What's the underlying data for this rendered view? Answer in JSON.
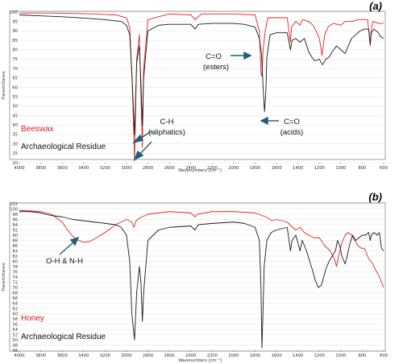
{
  "colors": {
    "sample": "#e02424",
    "residue": "#1a1a1a",
    "arrow": "#1f5f7a",
    "grid": "#cfcfcf"
  },
  "chart_data": [
    {
      "type": "line",
      "panel_label": "(a)",
      "xlabel": "Wavenumbers [cm⁻¹]",
      "ylabel": "Transmittance",
      "xlim": [
        4000,
        600
      ],
      "ylim": [
        20,
        100
      ],
      "x_ticks": [
        "4000",
        "3800",
        "3600",
        "3400",
        "3200",
        "3000",
        "2800",
        "2600",
        "2400",
        "2200",
        "2000",
        "1800",
        "1600",
        "1400",
        "1200",
        "1000",
        "800",
        "600"
      ],
      "y_ticks": [
        "20",
        "25",
        "30",
        "35",
        "40",
        "45",
        "50",
        "55",
        "60",
        "65",
        "70",
        "75",
        "80",
        "85",
        "90",
        "95",
        "100"
      ],
      "legend": [
        "Beeswax",
        "Archaeological Residue"
      ],
      "annotations": [
        {
          "text": "C-H",
          "text2": "(aliphatics)"
        },
        {
          "text": "C=O",
          "text2": "(esters)"
        },
        {
          "text": "C=O",
          "text2": "(acids)"
        }
      ],
      "series": [
        {
          "name": "Beeswax",
          "color": "#e02424",
          "points": [
            [
              4000,
              99.5
            ],
            [
              3700,
              99.5
            ],
            [
              3500,
              99.3
            ],
            [
              3300,
              99
            ],
            [
              3100,
              98.5
            ],
            [
              3000,
              97
            ],
            [
              2970,
              92
            ],
            [
              2945,
              60
            ],
            [
              2925,
              21
            ],
            [
              2905,
              75
            ],
            [
              2880,
              88
            ],
            [
              2865,
              55
            ],
            [
              2852,
              28
            ],
            [
              2840,
              70
            ],
            [
              2800,
              96
            ],
            [
              2600,
              99
            ],
            [
              2400,
              98.5
            ],
            [
              2360,
              96
            ],
            [
              2340,
              97
            ],
            [
              2300,
              99
            ],
            [
              2000,
              99
            ],
            [
              1800,
              98.5
            ],
            [
              1760,
              90
            ],
            [
              1745,
              68
            ],
            [
              1736,
              66
            ],
            [
              1725,
              80
            ],
            [
              1705,
              90
            ],
            [
              1680,
              97
            ],
            [
              1500,
              97
            ],
            [
              1470,
              84
            ],
            [
              1460,
              92
            ],
            [
              1420,
              95
            ],
            [
              1380,
              93
            ],
            [
              1360,
              96
            ],
            [
              1300,
              95
            ],
            [
              1260,
              93
            ],
            [
              1240,
              91
            ],
            [
              1200,
              86
            ],
            [
              1175,
              77
            ],
            [
              1150,
              88
            ],
            [
              1120,
              92
            ],
            [
              1070,
              94
            ],
            [
              1000,
              93
            ],
            [
              960,
              95
            ],
            [
              900,
              95
            ],
            [
              830,
              96
            ],
            [
              750,
              96
            ],
            [
              725,
              82
            ],
            [
              718,
              90
            ],
            [
              700,
              95
            ],
            [
              650,
              94
            ],
            [
              600,
              94
            ]
          ]
        },
        {
          "name": "Archaeological Residue",
          "color": "#1a1a1a",
          "points": [
            [
              4000,
              98.5
            ],
            [
              3800,
              98
            ],
            [
              3600,
              97.5
            ],
            [
              3400,
              96.8
            ],
            [
              3200,
              96
            ],
            [
              3050,
              95
            ],
            [
              3000,
              93
            ],
            [
              2970,
              88
            ],
            [
              2950,
              68
            ],
            [
              2925,
              35
            ],
            [
              2905,
              73
            ],
            [
              2880,
              82
            ],
            [
              2865,
              62
            ],
            [
              2852,
              40
            ],
            [
              2840,
              65
            ],
            [
              2800,
              90
            ],
            [
              2700,
              93
            ],
            [
              2600,
              93.5
            ],
            [
              2400,
              93.5
            ],
            [
              2360,
              91
            ],
            [
              2330,
              93.5
            ],
            [
              2200,
              94
            ],
            [
              2000,
              94
            ],
            [
              1900,
              93.5
            ],
            [
              1800,
              92
            ],
            [
              1760,
              86
            ],
            [
              1740,
              78
            ],
            [
              1725,
              60
            ],
            [
              1712,
              47
            ],
            [
              1700,
              57
            ],
            [
              1690,
              76
            ],
            [
              1660,
              88
            ],
            [
              1600,
              89
            ],
            [
              1500,
              89
            ],
            [
              1470,
              80
            ],
            [
              1455,
              85
            ],
            [
              1420,
              86
            ],
            [
              1380,
              84
            ],
            [
              1340,
              86
            ],
            [
              1300,
              79
            ],
            [
              1270,
              76
            ],
            [
              1240,
              74
            ],
            [
              1200,
              75
            ],
            [
              1170,
              72
            ],
            [
              1140,
              75
            ],
            [
              1110,
              76
            ],
            [
              1080,
              79
            ],
            [
              1040,
              82
            ],
            [
              1000,
              80
            ],
            [
              960,
              78
            ],
            [
              930,
              82
            ],
            [
              900,
              86
            ],
            [
              860,
              88
            ],
            [
              820,
              90
            ],
            [
              780,
              91
            ],
            [
              740,
              91
            ],
            [
              725,
              83
            ],
            [
              715,
              89
            ],
            [
              690,
              91
            ],
            [
              650,
              89
            ],
            [
              630,
              87
            ],
            [
              600,
              86
            ]
          ]
        }
      ]
    },
    {
      "type": "line",
      "panel_label": "(b)",
      "xlabel": "Wavenumbers [cm⁻¹]",
      "ylabel": "Transmittance",
      "xlim": [
        4000,
        600
      ],
      "ylim": [
        46,
        102
      ],
      "x_ticks": [
        "4000",
        "3800",
        "3600",
        "3400",
        "3200",
        "3000",
        "2800",
        "2600",
        "2400",
        "2200",
        "2000",
        "1800",
        "1600",
        "1400",
        "1200",
        "1000",
        "800",
        "600"
      ],
      "y_ticks": [
        "46",
        "48",
        "50",
        "52",
        "54",
        "56",
        "58",
        "60",
        "62",
        "64",
        "66",
        "68",
        "70",
        "72",
        "74",
        "76",
        "78",
        "80",
        "82",
        "84",
        "86",
        "88",
        "90",
        "92",
        "94",
        "96",
        "98",
        "100",
        "102"
      ],
      "legend": [
        "Honey",
        "Archaeological Residue"
      ],
      "annotations": [
        {
          "text": "O-H & N-H"
        }
      ],
      "series": [
        {
          "name": "Honey",
          "color": "#e02424",
          "points": [
            [
              4000,
              99.5
            ],
            [
              3800,
              99
            ],
            [
              3700,
              98
            ],
            [
              3600,
              95
            ],
            [
              3550,
              92
            ],
            [
              3500,
              89.5
            ],
            [
              3450,
              88
            ],
            [
              3400,
              87.3
            ],
            [
              3350,
              87.5
            ],
            [
              3300,
              88.5
            ],
            [
              3200,
              91
            ],
            [
              3100,
              94
            ],
            [
              3000,
              96
            ],
            [
              2950,
              95
            ],
            [
              2930,
              93
            ],
            [
              2910,
              95.5
            ],
            [
              2880,
              96.5
            ],
            [
              2800,
              98
            ],
            [
              2600,
              99
            ],
            [
              2400,
              98.5
            ],
            [
              2360,
              97
            ],
            [
              2340,
              98
            ],
            [
              2200,
              99
            ],
            [
              2000,
              99
            ],
            [
              1800,
              98.5
            ],
            [
              1700,
              97
            ],
            [
              1640,
              95.5
            ],
            [
              1600,
              96
            ],
            [
              1500,
              95
            ],
            [
              1450,
              93
            ],
            [
              1420,
              92
            ],
            [
              1380,
              93
            ],
            [
              1340,
              91
            ],
            [
              1300,
              90
            ],
            [
              1250,
              89
            ],
            [
              1200,
              89
            ],
            [
              1150,
              86
            ],
            [
              1100,
              84
            ],
            [
              1060,
              81
            ],
            [
              1040,
              78
            ],
            [
              1020,
              82
            ],
            [
              990,
              87
            ],
            [
              960,
              90
            ],
            [
              930,
              91
            ],
            [
              900,
              90
            ],
            [
              870,
              88
            ],
            [
              840,
              86
            ],
            [
              810,
              85
            ],
            [
              780,
              85
            ],
            [
              760,
              83
            ],
            [
              740,
              81
            ],
            [
              720,
              80
            ],
            [
              700,
              79
            ],
            [
              680,
              77
            ],
            [
              650,
              75
            ],
            [
              620,
              72
            ],
            [
              600,
              70
            ]
          ]
        },
        {
          "name": "Archaeological Residue",
          "color": "#1a1a1a",
          "points": [
            [
              4000,
              99
            ],
            [
              3900,
              99
            ],
            [
              3800,
              98.5
            ],
            [
              3700,
              97.5
            ],
            [
              3600,
              97
            ],
            [
              3500,
              96
            ],
            [
              3400,
              95.5
            ],
            [
              3300,
              95
            ],
            [
              3200,
              94.5
            ],
            [
              3100,
              94
            ],
            [
              3050,
              93
            ],
            [
              3000,
              90
            ],
            [
              2970,
              80
            ],
            [
              2950,
              60
            ],
            [
              2925,
              50
            ],
            [
              2905,
              68
            ],
            [
              2880,
              78
            ],
            [
              2865,
              72
            ],
            [
              2852,
              57
            ],
            [
              2840,
              68
            ],
            [
              2800,
              88
            ],
            [
              2700,
              92
            ],
            [
              2600,
              93
            ],
            [
              2400,
              93.5
            ],
            [
              2360,
              92
            ],
            [
              2330,
              94
            ],
            [
              2200,
              94.5
            ],
            [
              2000,
              95
            ],
            [
              1900,
              94.5
            ],
            [
              1800,
              93
            ],
            [
              1760,
              88
            ],
            [
              1745,
              70
            ],
            [
              1736,
              47
            ],
            [
              1728,
              58
            ],
            [
              1715,
              78
            ],
            [
              1690,
              88
            ],
            [
              1650,
              91
            ],
            [
              1600,
              92
            ],
            [
              1500,
              93
            ],
            [
              1470,
              84
            ],
            [
              1455,
              88
            ],
            [
              1420,
              90
            ],
            [
              1380,
              84
            ],
            [
              1360,
              88
            ],
            [
              1320,
              84
            ],
            [
              1290,
              80
            ],
            [
              1260,
              76
            ],
            [
              1240,
              73
            ],
            [
              1210,
              70
            ],
            [
              1180,
              71
            ],
            [
              1160,
              74
            ],
            [
              1140,
              77
            ],
            [
              1110,
              80
            ],
            [
              1080,
              82
            ],
            [
              1050,
              84
            ],
            [
              1030,
              88
            ],
            [
              1010,
              86
            ],
            [
              990,
              82
            ],
            [
              960,
              79
            ],
            [
              940,
              82
            ],
            [
              920,
              86
            ],
            [
              890,
              90
            ],
            [
              860,
              88
            ],
            [
              830,
              89
            ],
            [
              800,
              90
            ],
            [
              770,
              90
            ],
            [
              740,
              91
            ],
            [
              725,
              88
            ],
            [
              715,
              90
            ],
            [
              690,
              91
            ],
            [
              660,
              90
            ],
            [
              640,
              91
            ],
            [
              620,
              85
            ],
            [
              600,
              84
            ]
          ]
        }
      ]
    }
  ]
}
